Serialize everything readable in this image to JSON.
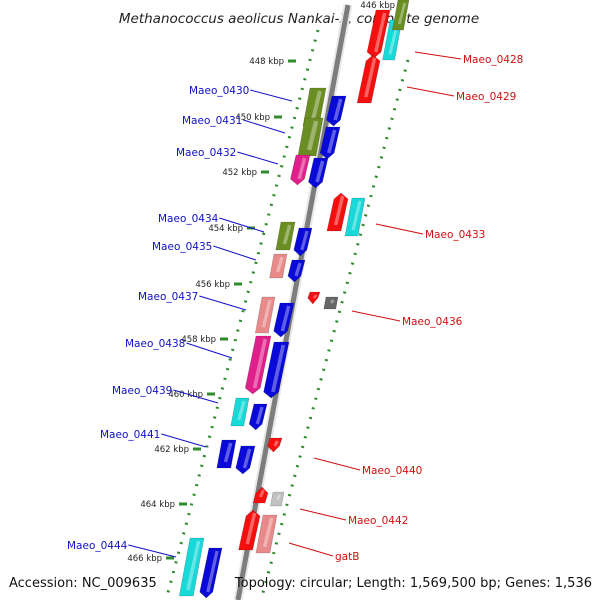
{
  "title": "Methanococcus aeolicus Nankai-3, complete genome",
  "footer": {
    "accession": "Accession: NC_009635",
    "topology": "Topology: circular; Length: 1,569,500 bp; Genes: 1,536"
  },
  "colors": {
    "background": "#ffffff",
    "backbone": "#8a8a8a",
    "tick": "#2e8b2e",
    "left_label": "#1010c8",
    "right_label": "#d01010",
    "kbp_text": "#222222"
  },
  "ticks": {
    "major_labels": [
      "446 kbp",
      "448 kbp",
      "450 kbp",
      "452 kbp",
      "454 kbp",
      "456 kbp",
      "458 kbp",
      "460 kbp",
      "462 kbp",
      "464 kbp",
      "466 kbp"
    ]
  },
  "genes_left": [
    {
      "label": "Maeo_0430"
    },
    {
      "label": "Maeo_0431"
    },
    {
      "label": "Maeo_0432"
    },
    {
      "label": "Maeo_0434"
    },
    {
      "label": "Maeo_0435"
    },
    {
      "label": "Maeo_0437"
    },
    {
      "label": "Maeo_0438"
    },
    {
      "label": "Maeo_0439"
    },
    {
      "label": "Maeo_0441"
    },
    {
      "label": "Maeo_0444"
    }
  ],
  "genes_right": [
    {
      "label": "Maeo_0428"
    },
    {
      "label": "Maeo_0429"
    },
    {
      "label": "Maeo_0433"
    },
    {
      "label": "Maeo_0436"
    },
    {
      "label": "Maeo_0440"
    },
    {
      "label": "Maeo_0442"
    },
    {
      "label": "gatB"
    }
  ]
}
